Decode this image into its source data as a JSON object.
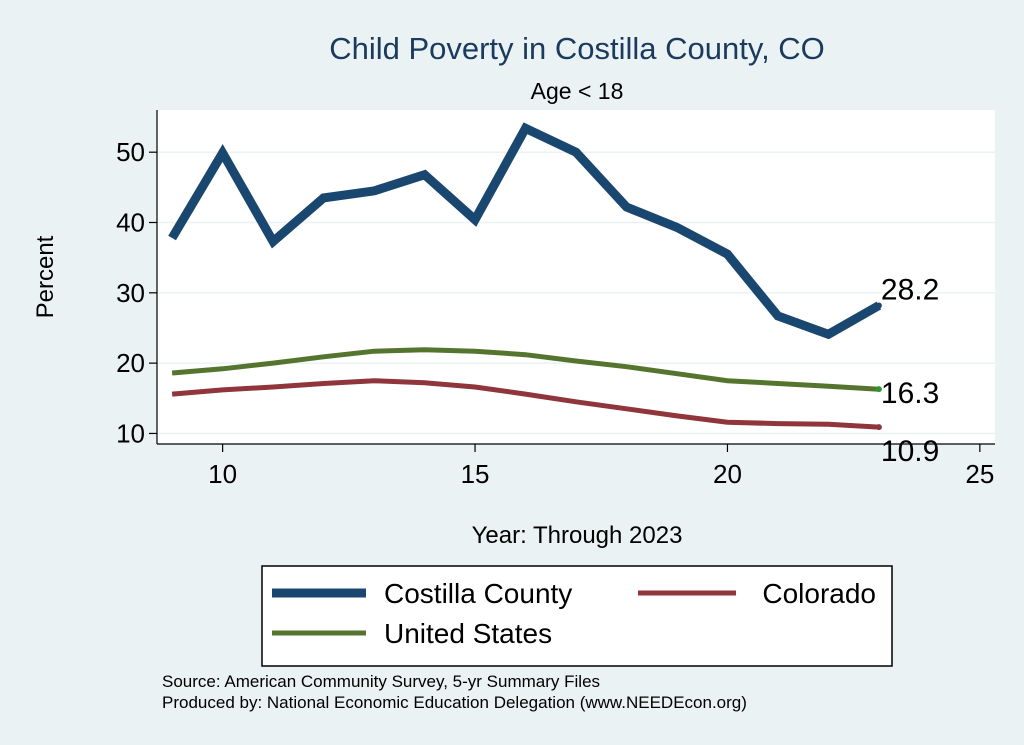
{
  "chart_data": {
    "type": "line",
    "title": "Child Poverty in Costilla County, CO",
    "subtitle": "Age < 18",
    "xlabel": "Year: Through 2023",
    "ylabel": "Percent",
    "xlim": [
      8.7,
      25.3
    ],
    "ylim": [
      8.5,
      56
    ],
    "x_ticks": [
      10,
      15,
      20,
      25
    ],
    "y_ticks": [
      10,
      20,
      30,
      40,
      50
    ],
    "x": [
      9,
      10,
      11,
      12,
      13,
      14,
      15,
      16,
      17,
      18,
      19,
      20,
      21,
      22,
      23
    ],
    "grid": true,
    "legend_position": "bottom",
    "series": [
      {
        "name": "Costilla County",
        "color": "#1a476f",
        "values": [
          37.8,
          49.9,
          37.3,
          43.5,
          44.5,
          46.8,
          40.4,
          53.4,
          50.0,
          42.2,
          39.3,
          35.5,
          26.7,
          24.1,
          28.2
        ],
        "end_label": "28.2"
      },
      {
        "name": "United States",
        "color": "#55752f",
        "values": [
          18.6,
          19.2,
          20.0,
          20.9,
          21.7,
          21.9,
          21.7,
          21.2,
          20.3,
          19.5,
          18.5,
          17.5,
          17.1,
          16.7,
          16.3
        ],
        "end_label": "16.3"
      },
      {
        "name": "Colorado",
        "color": "#90353b",
        "values": [
          15.6,
          16.2,
          16.6,
          17.1,
          17.5,
          17.2,
          16.6,
          15.6,
          14.5,
          13.5,
          12.5,
          11.6,
          11.4,
          11.3,
          10.9
        ],
        "end_label": "10.9"
      }
    ]
  },
  "legend": {
    "costilla": "Costilla County",
    "colorado": "Colorado",
    "us": "United States"
  },
  "source": {
    "line1": "Source: American Community Survey, 5-yr Summary Files",
    "line2": "Produced by: National Economic Education Delegation (www.NEEDEcon.org)"
  }
}
